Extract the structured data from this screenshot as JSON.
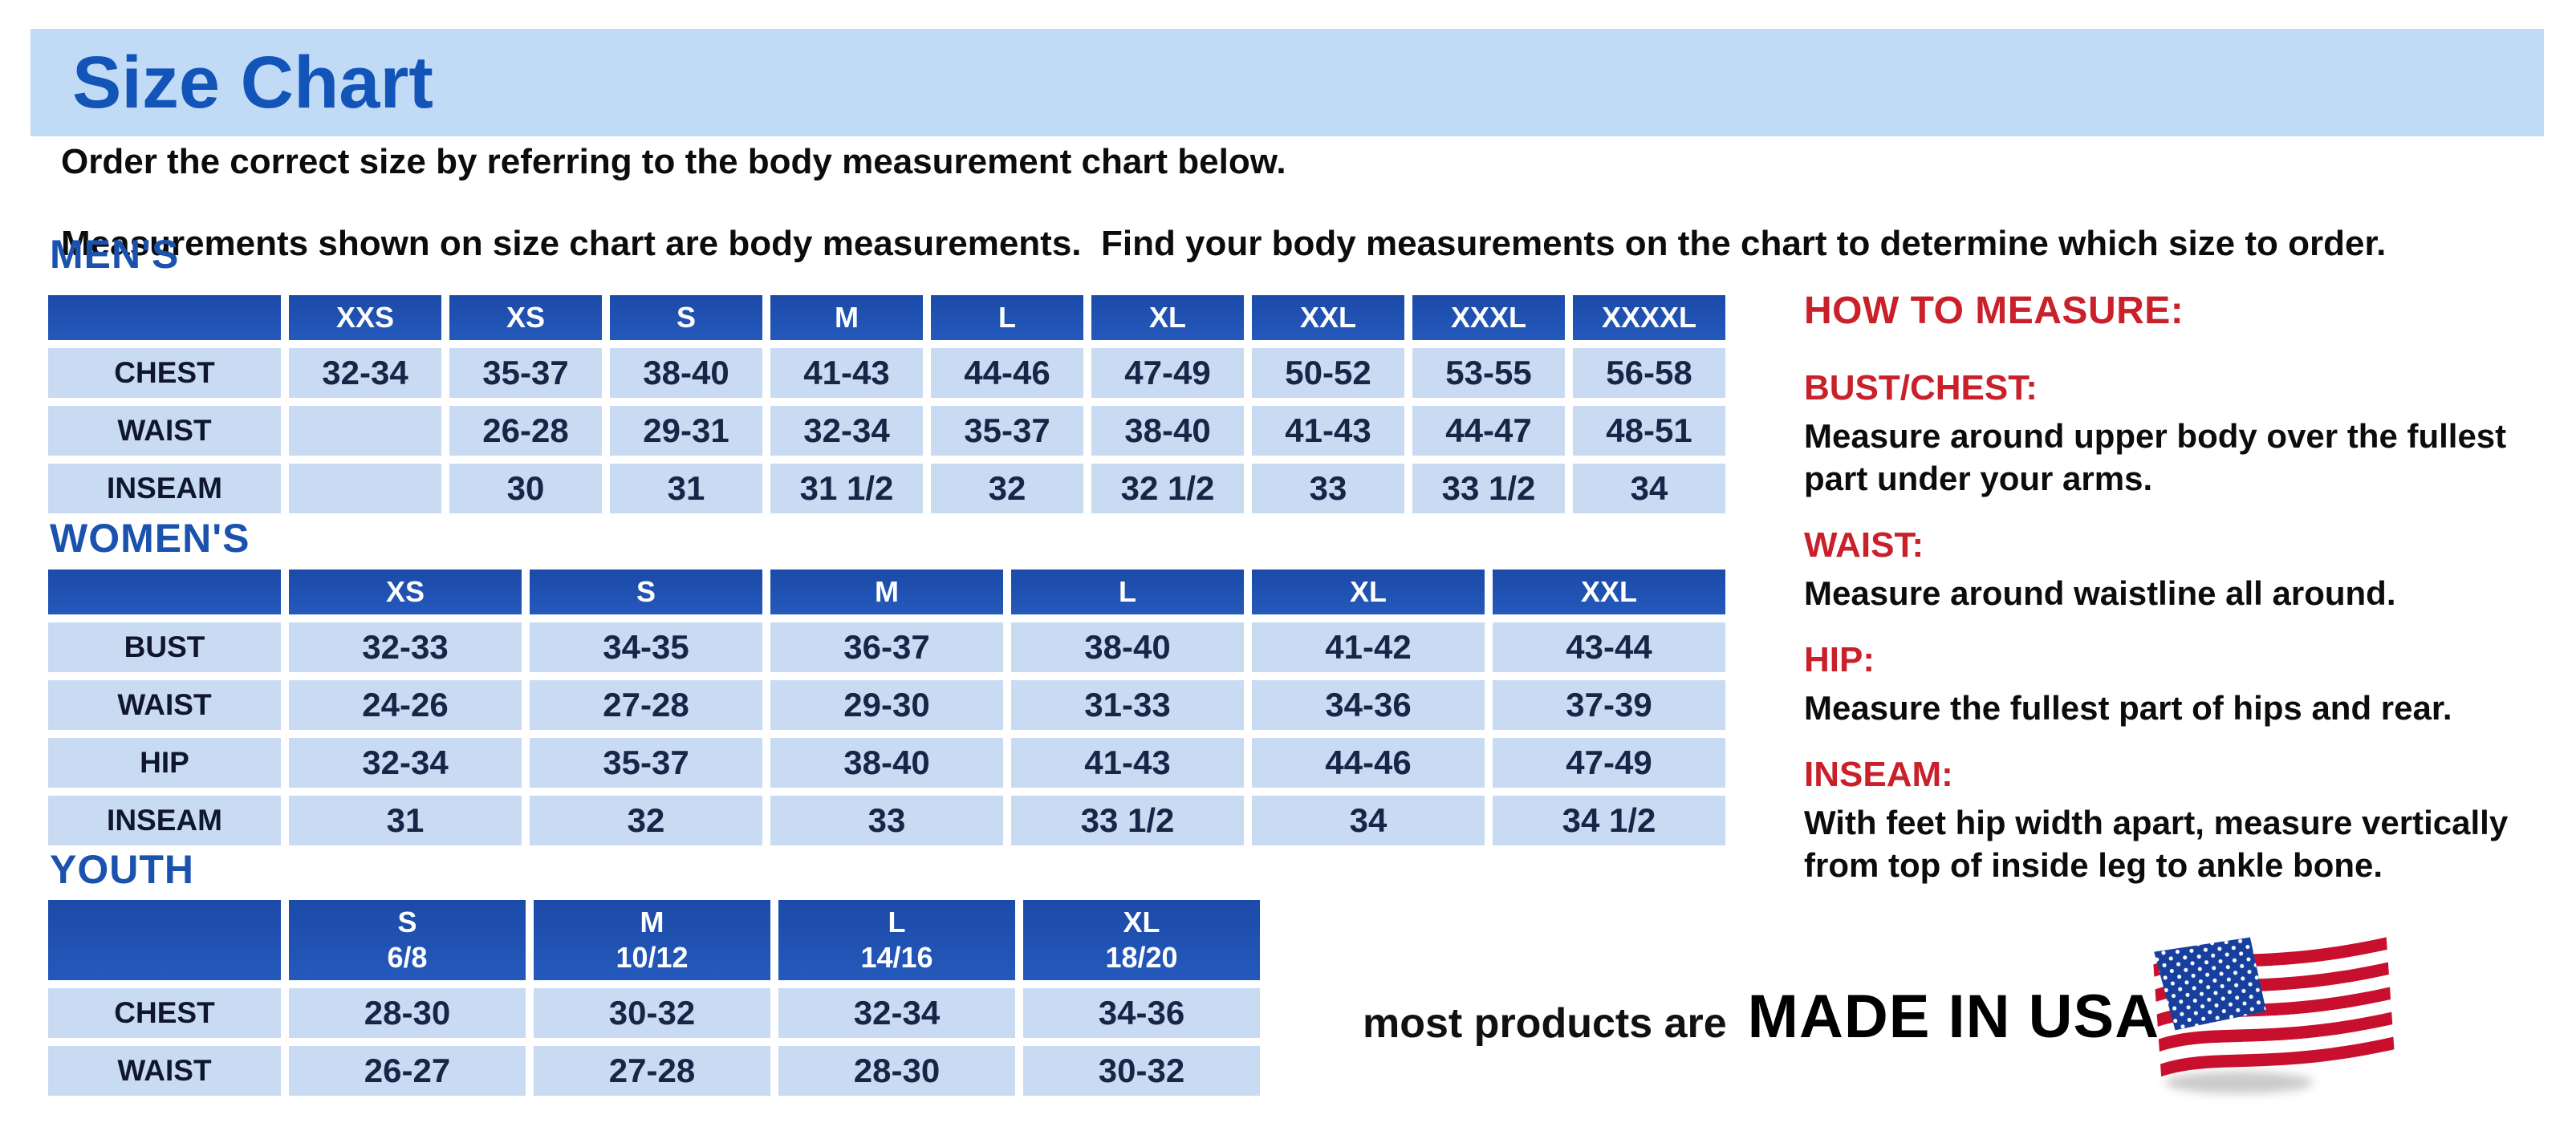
{
  "page": {
    "title": "Size Chart",
    "intro_line1": "Order the correct size by referring to the body measurement chart below.",
    "intro_line2": "Measurements shown on size chart are body measurements.  Find your body measurements on the chart to determine which size to order."
  },
  "colors": {
    "banner_bg": "#c1daf6",
    "title_blue": "#1254b8",
    "section_heading_blue": "#1b52ae",
    "table_header_bg": "#2155b2",
    "table_cell_bg": "#c9dbf3",
    "accent_red": "#c9202a"
  },
  "tables": {
    "mens": {
      "heading": "MEN'S",
      "columns": [
        "XXS",
        "XS",
        "S",
        "M",
        "L",
        "XL",
        "XXL",
        "XXXL",
        "XXXXL"
      ],
      "rows": [
        {
          "label": "CHEST",
          "values": [
            "32-34",
            "35-37",
            "38-40",
            "41-43",
            "44-46",
            "47-49",
            "50-52",
            "53-55",
            "56-58"
          ]
        },
        {
          "label": "WAIST",
          "values": [
            "",
            "26-28",
            "29-31",
            "32-34",
            "35-37",
            "38-40",
            "41-43",
            "44-47",
            "48-51"
          ]
        },
        {
          "label": "INSEAM",
          "values": [
            "",
            "30",
            "31",
            "31 1/2",
            "32",
            "32 1/2",
            "33",
            "33 1/2",
            "34"
          ]
        }
      ]
    },
    "womens": {
      "heading": "WOMEN'S",
      "columns": [
        "XS",
        "S",
        "M",
        "L",
        "XL",
        "XXL"
      ],
      "rows": [
        {
          "label": "BUST",
          "values": [
            "32-33",
            "34-35",
            "36-37",
            "38-40",
            "41-42",
            "43-44"
          ]
        },
        {
          "label": "WAIST",
          "values": [
            "24-26",
            "27-28",
            "29-30",
            "31-33",
            "34-36",
            "37-39"
          ]
        },
        {
          "label": "HIP",
          "values": [
            "32-34",
            "35-37",
            "38-40",
            "41-43",
            "44-46",
            "47-49"
          ]
        },
        {
          "label": "INSEAM",
          "values": [
            "31",
            "32",
            "33",
            "33 1/2",
            "34",
            "34 1/2"
          ]
        }
      ]
    },
    "youth": {
      "heading": "YOUTH",
      "columns": [
        {
          "size": "S",
          "range": "6/8"
        },
        {
          "size": "M",
          "range": "10/12"
        },
        {
          "size": "L",
          "range": "14/16"
        },
        {
          "size": "XL",
          "range": "18/20"
        }
      ],
      "rows": [
        {
          "label": "CHEST",
          "values": [
            "28-30",
            "30-32",
            "32-34",
            "34-36"
          ]
        },
        {
          "label": "WAIST",
          "values": [
            "26-27",
            "27-28",
            "28-30",
            "30-32"
          ]
        }
      ]
    }
  },
  "how_to_measure": {
    "heading": "HOW TO MEASURE:",
    "items": [
      {
        "term": "BUST/CHEST:",
        "description": "Measure around upper body over the fullest part under your arms."
      },
      {
        "term": "WAIST:",
        "description": "Measure around waistline all around."
      },
      {
        "term": "HIP:",
        "description": "Measure the fullest part of hips and rear."
      },
      {
        "term": "INSEAM:",
        "description": "With feet hip width apart, measure vertically from top of inside leg to ankle bone."
      }
    ]
  },
  "footer": {
    "prefix": "most products are",
    "emphasis": "MADE IN USA",
    "flag_icon": "usa-flag-icon"
  }
}
